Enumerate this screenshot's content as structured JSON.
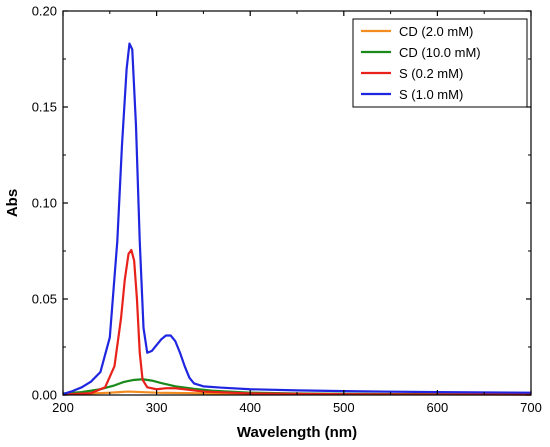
{
  "chart_data": {
    "type": "line",
    "title": "",
    "xlabel": "Wavelength (nm)",
    "ylabel": "Abs",
    "xlim": [
      200,
      700
    ],
    "ylim": [
      0,
      0.2
    ],
    "x_ticks": [
      200,
      300,
      400,
      500,
      600,
      700
    ],
    "x_tick_labels": [
      "200",
      "300",
      "400",
      "500",
      "600",
      "700"
    ],
    "y_ticks": [
      0,
      0.05,
      0.1,
      0.15,
      0.2
    ],
    "y_tick_labels": [
      "0.00",
      "0.05",
      "0.10",
      "0.15",
      "0.20"
    ],
    "grid": false,
    "legend_position": "top-right",
    "series": [
      {
        "name": "CD (2.0 mM)",
        "color": "#F28C1E",
        "points": [
          [
            200,
            0.0005
          ],
          [
            230,
            0.0008
          ],
          [
            250,
            0.0012
          ],
          [
            260,
            0.0015
          ],
          [
            270,
            0.0018
          ],
          [
            280,
            0.0016
          ],
          [
            300,
            0.0012
          ],
          [
            330,
            0.001
          ],
          [
            400,
            0.0006
          ],
          [
            500,
            0.0004
          ],
          [
            600,
            0.0003
          ],
          [
            700,
            0.0003
          ]
        ]
      },
      {
        "name": "CD (10.0 mM)",
        "color": "#1A8A1A",
        "points": [
          [
            200,
            0.0008
          ],
          [
            220,
            0.0015
          ],
          [
            240,
            0.003
          ],
          [
            255,
            0.005
          ],
          [
            265,
            0.0068
          ],
          [
            275,
            0.0078
          ],
          [
            285,
            0.0082
          ],
          [
            295,
            0.0075
          ],
          [
            305,
            0.0062
          ],
          [
            320,
            0.0045
          ],
          [
            340,
            0.0032
          ],
          [
            360,
            0.0022
          ],
          [
            400,
            0.0012
          ],
          [
            450,
            0.0008
          ],
          [
            500,
            0.0006
          ],
          [
            600,
            0.0004
          ],
          [
            700,
            0.0003
          ]
        ]
      },
      {
        "name": "S (0.2 mM)",
        "color": "#E8221B",
        "points": [
          [
            200,
            0.0002
          ],
          [
            230,
            0.001
          ],
          [
            245,
            0.004
          ],
          [
            255,
            0.015
          ],
          [
            262,
            0.04
          ],
          [
            266,
            0.06
          ],
          [
            270,
            0.0735
          ],
          [
            273,
            0.0755
          ],
          [
            276,
            0.07
          ],
          [
            279,
            0.05
          ],
          [
            282,
            0.022
          ],
          [
            285,
            0.008
          ],
          [
            290,
            0.004
          ],
          [
            300,
            0.003
          ],
          [
            310,
            0.0035
          ],
          [
            320,
            0.0035
          ],
          [
            330,
            0.003
          ],
          [
            350,
            0.0018
          ],
          [
            380,
            0.0012
          ],
          [
            400,
            0.0008
          ],
          [
            500,
            0.0004
          ],
          [
            600,
            0.0003
          ],
          [
            700,
            0.0002
          ]
        ]
      },
      {
        "name": "S (1.0 mM)",
        "color": "#1F26E0",
        "points": [
          [
            200,
            0.0005
          ],
          [
            210,
            0.002
          ],
          [
            220,
            0.004
          ],
          [
            230,
            0.007
          ],
          [
            240,
            0.012
          ],
          [
            250,
            0.03
          ],
          [
            258,
            0.08
          ],
          [
            263,
            0.13
          ],
          [
            268,
            0.17
          ],
          [
            271,
            0.183
          ],
          [
            274,
            0.18
          ],
          [
            278,
            0.14
          ],
          [
            282,
            0.08
          ],
          [
            286,
            0.035
          ],
          [
            290,
            0.022
          ],
          [
            295,
            0.023
          ],
          [
            300,
            0.026
          ],
          [
            305,
            0.029
          ],
          [
            310,
            0.031
          ],
          [
            315,
            0.031
          ],
          [
            320,
            0.028
          ],
          [
            325,
            0.022
          ],
          [
            330,
            0.015
          ],
          [
            335,
            0.009
          ],
          [
            340,
            0.006
          ],
          [
            350,
            0.0045
          ],
          [
            370,
            0.0038
          ],
          [
            400,
            0.003
          ],
          [
            450,
            0.0024
          ],
          [
            500,
            0.002
          ],
          [
            600,
            0.0015
          ],
          [
            700,
            0.0012
          ]
        ]
      }
    ]
  }
}
